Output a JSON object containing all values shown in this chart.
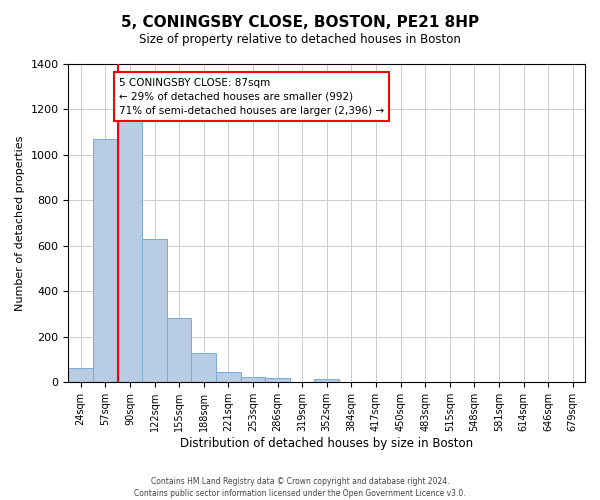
{
  "title": "5, CONINGSBY CLOSE, BOSTON, PE21 8HP",
  "subtitle": "Size of property relative to detached houses in Boston",
  "xlabel": "Distribution of detached houses by size in Boston",
  "ylabel": "Number of detached properties",
  "bar_labels": [
    "24sqm",
    "57sqm",
    "90sqm",
    "122sqm",
    "155sqm",
    "188sqm",
    "221sqm",
    "253sqm",
    "286sqm",
    "319sqm",
    "352sqm",
    "384sqm",
    "417sqm",
    "450sqm",
    "483sqm",
    "515sqm",
    "548sqm",
    "581sqm",
    "614sqm",
    "646sqm",
    "679sqm"
  ],
  "bar_values": [
    65,
    1070,
    1160,
    630,
    285,
    130,
    45,
    25,
    20,
    0,
    15,
    0,
    0,
    0,
    0,
    0,
    0,
    0,
    0,
    0,
    0
  ],
  "bar_color": "#b8cce4",
  "bar_edge_color": "#7aabdb",
  "ylim": [
    0,
    1400
  ],
  "yticks": [
    0,
    200,
    400,
    600,
    800,
    1000,
    1200,
    1400
  ],
  "red_line_x": 1.5,
  "annotation_title": "5 CONINGSBY CLOSE: 87sqm",
  "annotation_line1": "← 29% of detached houses are smaller (992)",
  "annotation_line2": "71% of semi-detached houses are larger (2,396) →",
  "footer_line1": "Contains HM Land Registry data © Crown copyright and database right 2024.",
  "footer_line2": "Contains public sector information licensed under the Open Government Licence v3.0.",
  "bg_color": "#ffffff",
  "grid_color": "#cccccc"
}
